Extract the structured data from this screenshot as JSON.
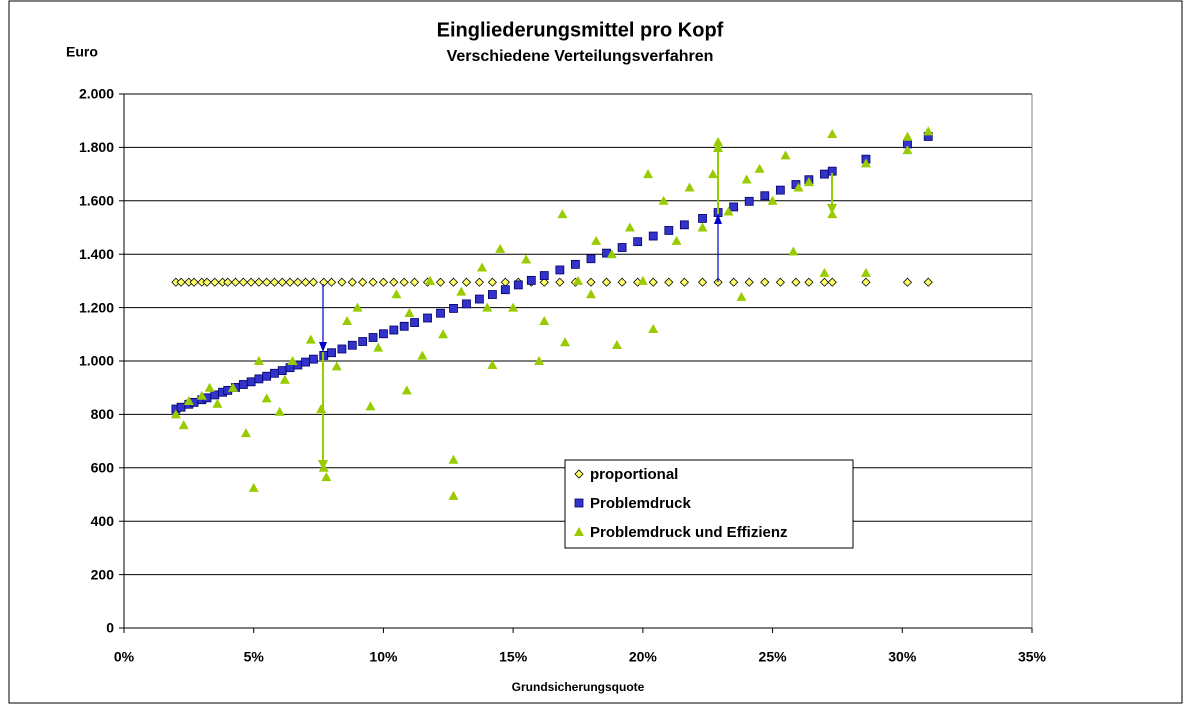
{
  "chart_data": {
    "type": "scatter",
    "title": "Eingliederungsmittel pro Kopf",
    "subtitle": "Verschiedene Verteilungsverfahren",
    "y_label": "Euro",
    "x_label": "Grundsicherungsquote",
    "xlim": [
      0,
      35
    ],
    "xticks": [
      {
        "value": 0,
        "label": "0%"
      },
      {
        "value": 5,
        "label": "5%"
      },
      {
        "value": 10,
        "label": "10%"
      },
      {
        "value": 15,
        "label": "15%"
      },
      {
        "value": 20,
        "label": "20%"
      },
      {
        "value": 25,
        "label": "25%"
      },
      {
        "value": 30,
        "label": "30%"
      },
      {
        "value": 35,
        "label": "35%"
      }
    ],
    "ylim": [
      0,
      2000
    ],
    "yticks": [
      0,
      200,
      400,
      600,
      800,
      {
        "value": 1000,
        "label": "1.000"
      },
      {
        "value": 1200,
        "label": "1.200"
      },
      {
        "value": 1400,
        "label": "1.400"
      },
      {
        "value": 1600,
        "label": "1.600"
      },
      {
        "value": 1800,
        "label": "1.800"
      },
      {
        "value": 2000,
        "label": "2.000"
      }
    ],
    "grid": true,
    "series": [
      {
        "name": "proportional",
        "color": "#ffff66",
        "marker": "diamond",
        "x": [
          2.0,
          2.2,
          2.5,
          2.7,
          3.0,
          3.2,
          3.5,
          3.8,
          4.0,
          4.3,
          4.6,
          4.9,
          5.2,
          5.5,
          5.8,
          6.1,
          6.4,
          6.7,
          7.0,
          7.3,
          7.7,
          8.0,
          8.4,
          8.8,
          9.2,
          9.6,
          10.0,
          10.4,
          10.8,
          11.2,
          11.7,
          12.2,
          12.7,
          13.2,
          13.7,
          14.2,
          14.7,
          15.2,
          15.7,
          16.2,
          16.8,
          17.4,
          18.0,
          18.6,
          19.2,
          19.8,
          20.4,
          21.0,
          21.6,
          22.3,
          22.9,
          23.5,
          24.1,
          24.7,
          25.3,
          25.9,
          26.4,
          27.0,
          27.3,
          28.6,
          30.2,
          31.0
        ],
        "values": [
          1295,
          1295,
          1295,
          1295,
          1295,
          1295,
          1295,
          1295,
          1295,
          1295,
          1295,
          1295,
          1295,
          1295,
          1295,
          1295,
          1295,
          1295,
          1295,
          1295,
          1295,
          1295,
          1295,
          1295,
          1295,
          1295,
          1295,
          1295,
          1295,
          1295,
          1295,
          1295,
          1295,
          1295,
          1295,
          1295,
          1295,
          1295,
          1295,
          1295,
          1295,
          1295,
          1295,
          1295,
          1295,
          1295,
          1295,
          1295,
          1295,
          1295,
          1295,
          1295,
          1295,
          1295,
          1295,
          1295,
          1295,
          1295,
          1295,
          1295,
          1295,
          1295
        ]
      },
      {
        "name": "Problemdruck",
        "color": "#3333cc",
        "marker": "square",
        "x": [
          2.0,
          2.2,
          2.5,
          2.7,
          3.0,
          3.2,
          3.5,
          3.8,
          4.0,
          4.3,
          4.6,
          4.9,
          5.2,
          5.5,
          5.8,
          6.1,
          6.4,
          6.7,
          7.0,
          7.3,
          7.7,
          8.0,
          8.4,
          8.8,
          9.2,
          9.6,
          10.0,
          10.4,
          10.8,
          11.2,
          11.7,
          12.2,
          12.7,
          13.2,
          13.7,
          14.2,
          14.7,
          15.2,
          15.7,
          16.2,
          16.8,
          17.4,
          18.0,
          18.6,
          19.2,
          19.8,
          20.4,
          21.0,
          21.6,
          22.3,
          22.9,
          23.5,
          24.1,
          24.7,
          25.3,
          25.9,
          26.4,
          27.0,
          27.3,
          28.6,
          30.2,
          31.0
        ],
        "values": [
          820,
          827,
          838,
          845,
          855,
          862,
          873,
          883,
          890,
          901,
          912,
          922,
          933,
          943,
          954,
          964,
          975,
          985,
          996,
          1007,
          1021,
          1031,
          1045,
          1059,
          1073,
          1088,
          1102,
          1116,
          1130,
          1144,
          1161,
          1179,
          1197,
          1214,
          1232,
          1249,
          1267,
          1285,
          1302,
          1320,
          1341,
          1362,
          1383,
          1404,
          1425,
          1447,
          1468,
          1489,
          1510,
          1534,
          1556,
          1577,
          1598,
          1619,
          1640,
          1661,
          1679,
          1700,
          1711,
          1756,
          1813,
          1841
        ]
      },
      {
        "name": "Problemdruck und Effizienz",
        "color": "#99cc00",
        "marker": "triangle",
        "x": [
          5.0,
          7.8,
          7.7,
          12.7,
          12.7,
          22.9,
          27.3,
          27.3,
          31.0,
          30.2,
          30.2,
          28.6,
          28.6,
          27.0,
          25.8,
          23.8,
          19.0,
          20.4,
          16.0,
          17.0,
          14.2,
          10.9,
          9.5,
          6.0,
          4.7,
          2.3,
          2.0,
          3.0,
          3.6,
          4.2,
          5.5,
          6.5,
          7.2,
          8.2,
          8.6,
          9.0,
          9.8,
          10.5,
          11.0,
          11.8,
          12.3,
          13.0,
          13.8,
          14.5,
          15.0,
          15.5,
          16.2,
          16.9,
          17.5,
          18.2,
          18.8,
          19.5,
          20.2,
          20.8,
          21.3,
          21.8,
          22.3,
          22.7,
          23.3,
          24.0,
          24.5,
          25.0,
          25.5,
          26.0,
          26.4,
          20.0,
          18.0,
          14.0,
          11.5,
          3.3,
          2.5,
          7.6,
          6.2,
          5.2
        ],
        "values": [
          525,
          565,
          600,
          630,
          495,
          1820,
          1850,
          1550,
          1860,
          1840,
          1790,
          1740,
          1330,
          1330,
          1410,
          1240,
          1060,
          1120,
          1000,
          1070,
          985,
          890,
          830,
          810,
          730,
          760,
          800,
          870,
          840,
          900,
          860,
          1000,
          1080,
          980,
          1150,
          1200,
          1050,
          1250,
          1180,
          1300,
          1100,
          1260,
          1350,
          1420,
          1200,
          1380,
          1150,
          1550,
          1300,
          1450,
          1400,
          1500,
          1700,
          1600,
          1450,
          1650,
          1500,
          1700,
          1560,
          1680,
          1720,
          1600,
          1770,
          1650,
          1670,
          1300,
          1250,
          1200,
          1020,
          900,
          850,
          820,
          930,
          1000
        ]
      }
    ]
  }
}
